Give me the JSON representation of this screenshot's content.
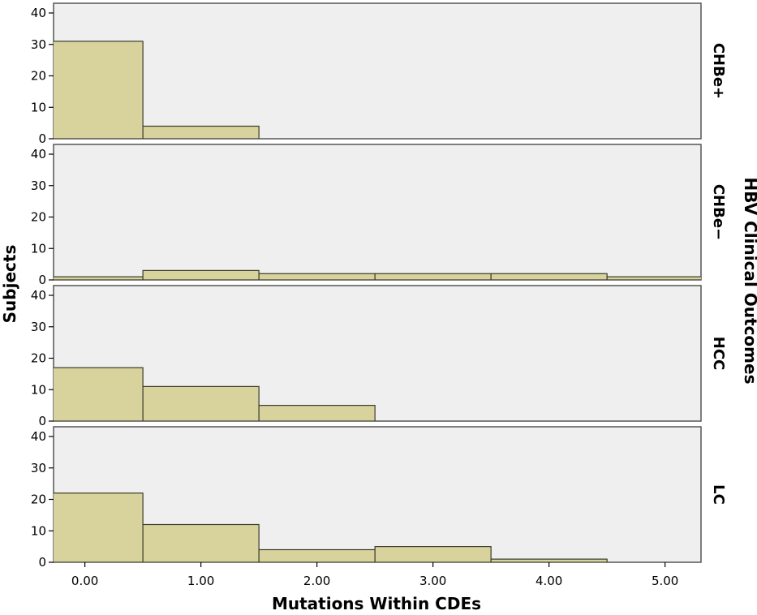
{
  "chart_data": {
    "type": "bar",
    "xlabel": "Mutations Within CDEs",
    "ylabel": "Subjects",
    "facet_label": "HBV Clinical Outcomes",
    "x_ticks": [
      "0.00",
      "1.00",
      "2.00",
      "3.00",
      "4.00",
      "5.00"
    ],
    "xlim": [
      -0.27,
      5.31
    ],
    "ylim": [
      0,
      42
    ],
    "y_ticks": [
      0,
      10,
      20,
      30,
      40
    ],
    "bin_edges": [
      -0.5,
      0.5,
      1.5,
      2.5,
      3.5,
      4.5,
      5.5
    ],
    "grid": false,
    "colors": {
      "bar_fill": "#d8d29d",
      "bar_stroke": "#3a3a2a",
      "panel_bg": "#efefef",
      "frame": "#555555"
    },
    "panels": [
      {
        "name": "CHBe+",
        "values": [
          31,
          4,
          0,
          0,
          0,
          0
        ]
      },
      {
        "name": "CHBe−",
        "values": [
          1,
          3,
          2,
          2,
          2,
          1
        ]
      },
      {
        "name": "HCC",
        "values": [
          17,
          11,
          5,
          0,
          0,
          0
        ]
      },
      {
        "name": "LC",
        "values": [
          22,
          12,
          4,
          5,
          1,
          0
        ]
      }
    ]
  }
}
